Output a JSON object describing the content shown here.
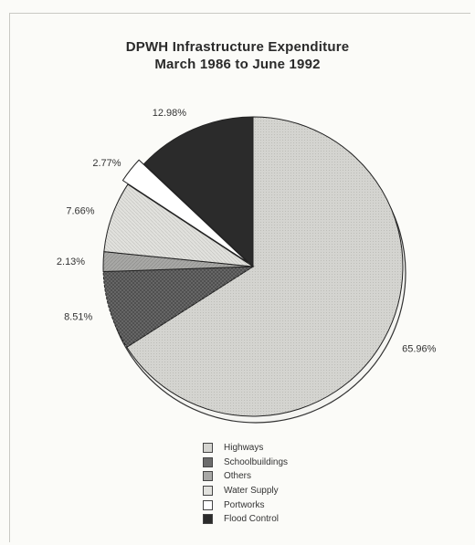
{
  "chart_data": {
    "type": "pie",
    "title": "DPWH Infrastructure Expenditure",
    "subtitle": "March 1986 to June 1992",
    "slices": [
      {
        "name": "Highways",
        "value": 65.96,
        "label": "65.96%",
        "color": "#d4d4d0"
      },
      {
        "name": "Schoolbuildings",
        "value": 8.51,
        "label": "8.51%",
        "color": "#6c6c6c"
      },
      {
        "name": "Others",
        "value": 2.13,
        "label": "2.13%",
        "color": "#a8a8a6"
      },
      {
        "name": "Water Supply",
        "value": 7.66,
        "label": "7.66%",
        "color": "#e1e1dd"
      },
      {
        "name": "Portworks",
        "value": 2.77,
        "label": "2.77%",
        "color": "#ffffff"
      },
      {
        "name": "Flood Control",
        "value": 12.98,
        "label": "12.98%",
        "color": "#2b2b2b"
      }
    ],
    "start_angle_deg": 0,
    "direction": "clockwise",
    "legend_position": "bottom"
  }
}
